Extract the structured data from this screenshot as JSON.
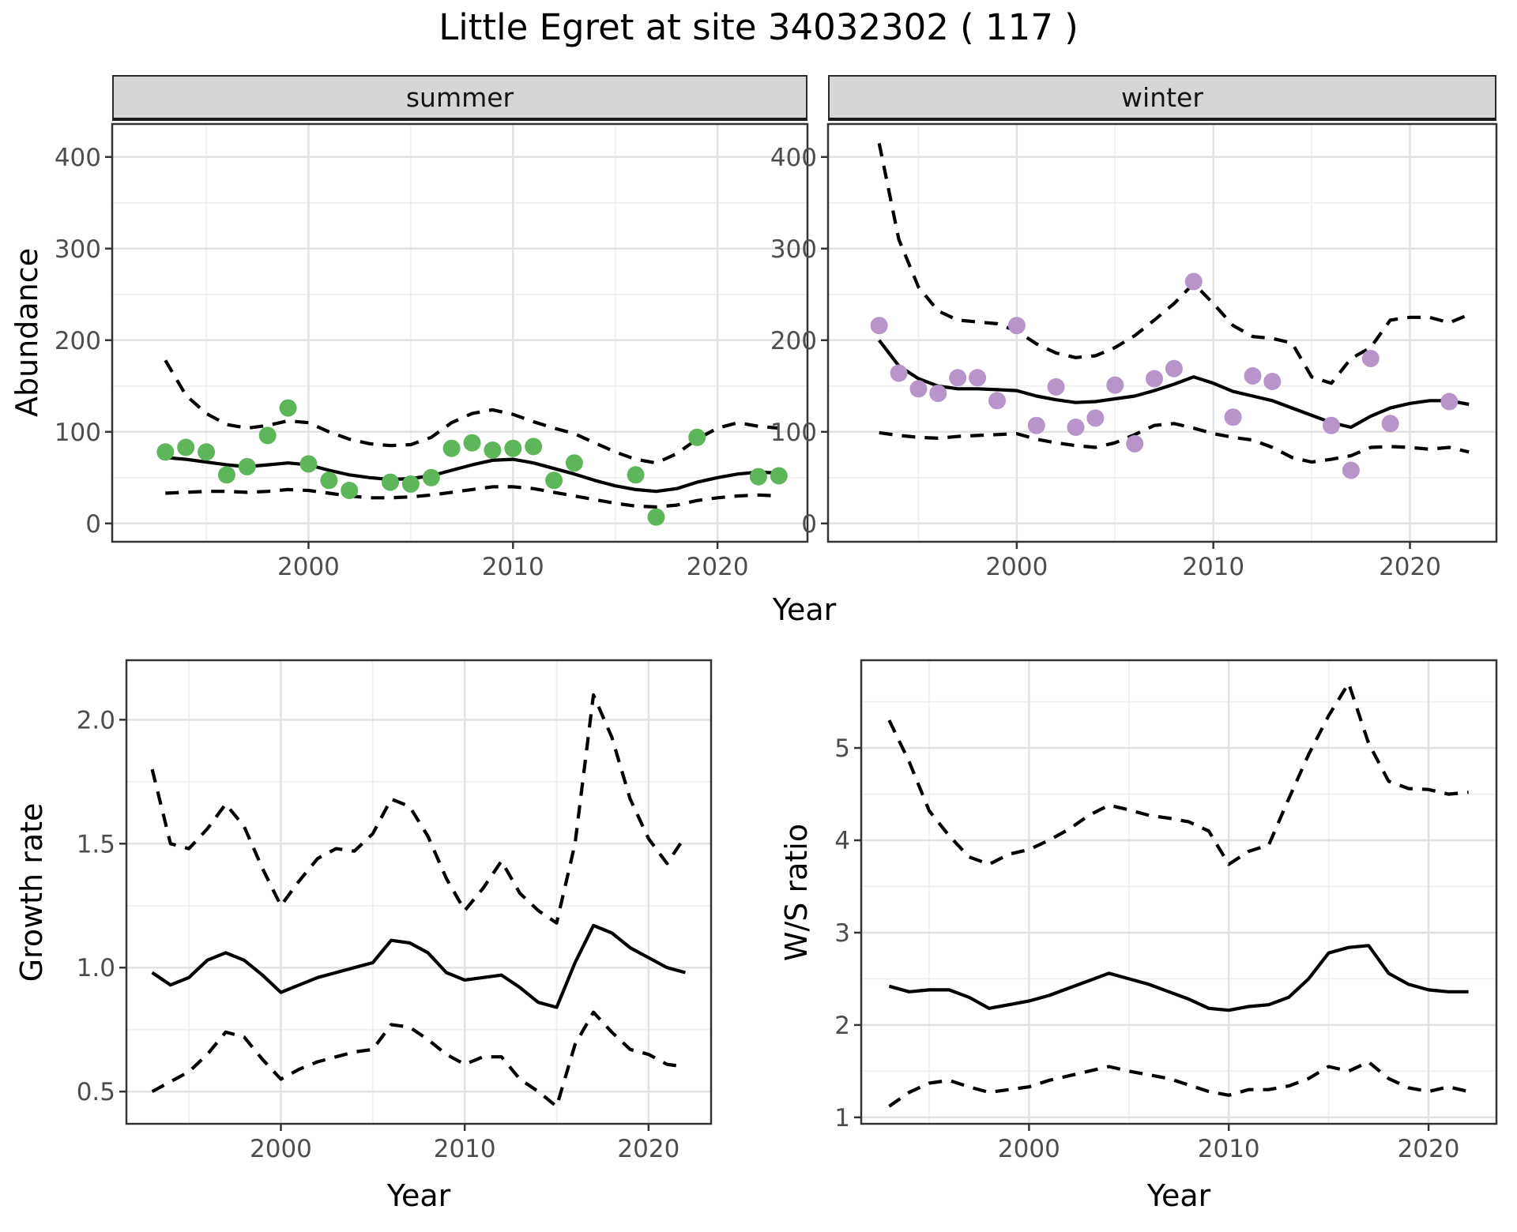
{
  "title": "Little Egret at site 34032302 ( 117 )",
  "colors": {
    "summer_point": "#5DB75A",
    "winter_point": "#B794C9",
    "line": "#000000",
    "strip_bg": "#D6D6D6",
    "panel_border": "#333333",
    "grid_major": "#E2E2E2",
    "grid_minor": "#EFEFEF",
    "tick_mark": "#333333",
    "tick_label": "#4D4D4D"
  },
  "shared_labels": {
    "top_ylabel": "Abundance",
    "top_xlabel": "Year"
  },
  "chart_data": [
    {
      "id": "abundance_summer",
      "type": "line+scatter",
      "facet_label": "summer",
      "xlabel": "Year",
      "ylabel": "Abundance",
      "xlim": [
        1990.4,
        2024.4
      ],
      "ylim": [
        -20,
        436
      ],
      "x_ticks": {
        "values": [
          2000,
          2010,
          2020
        ],
        "labels": [
          "2000",
          "2010",
          "2020"
        ]
      },
      "x_minor": [
        1995,
        2005,
        2015
      ],
      "y_ticks": {
        "values": [
          0,
          100,
          200,
          300,
          400
        ],
        "labels": [
          "0",
          "100",
          "200",
          "300",
          "400"
        ]
      },
      "y_minor": [
        50,
        150,
        250,
        350
      ],
      "years": [
        1993,
        1994,
        1995,
        1996,
        1997,
        1998,
        1999,
        2000,
        2001,
        2002,
        2003,
        2004,
        2005,
        2006,
        2007,
        2008,
        2009,
        2010,
        2011,
        2012,
        2013,
        2014,
        2015,
        2016,
        2017,
        2018,
        2019,
        2020,
        2021,
        2022,
        2023
      ],
      "series": [
        {
          "name": "fit",
          "style": "solid",
          "values": [
            72,
            70,
            67,
            64,
            62,
            64,
            66,
            64,
            58,
            53,
            50,
            48,
            49,
            52,
            58,
            64,
            69,
            70,
            66,
            60,
            54,
            47,
            41,
            37,
            35,
            38,
            45,
            50,
            54,
            56,
            55
          ]
        },
        {
          "name": "upper_ci",
          "style": "dashed",
          "values": [
            178,
            140,
            120,
            108,
            104,
            107,
            112,
            110,
            100,
            92,
            87,
            85,
            86,
            94,
            110,
            120,
            124,
            119,
            111,
            104,
            98,
            88,
            78,
            70,
            66,
            76,
            92,
            104,
            110,
            106,
            104
          ]
        },
        {
          "name": "lower_ci",
          "style": "dashed",
          "values": [
            33,
            34,
            35,
            35,
            34,
            35,
            37,
            36,
            33,
            30,
            28,
            28,
            29,
            31,
            34,
            37,
            40,
            40,
            38,
            34,
            30,
            26,
            22,
            19,
            18,
            20,
            25,
            28,
            30,
            31,
            30
          ]
        }
      ],
      "points": {
        "name": "observed_counts",
        "color": "#5DB75A",
        "years": [
          1993,
          1994,
          1995,
          1996,
          1997,
          1998,
          1999,
          2000,
          2001,
          2002,
          2004,
          2005,
          2006,
          2007,
          2008,
          2009,
          2010,
          2011,
          2012,
          2013,
          2016,
          2017,
          2019,
          2022,
          2023
        ],
        "values": [
          78,
          83,
          78,
          53,
          62,
          96,
          126,
          65,
          47,
          36,
          45,
          43,
          50,
          82,
          88,
          80,
          82,
          84,
          47,
          66,
          53,
          7,
          94,
          51,
          52
        ]
      }
    },
    {
      "id": "abundance_winter",
      "type": "line+scatter",
      "facet_label": "winter",
      "xlabel": "Year",
      "ylabel": "Abundance",
      "xlim": [
        1990.4,
        2024.4
      ],
      "ylim": [
        -20,
        436
      ],
      "x_ticks": {
        "values": [
          2000,
          2010,
          2020
        ],
        "labels": [
          "2000",
          "2010",
          "2020"
        ]
      },
      "x_minor": [
        1995,
        2005,
        2015
      ],
      "y_ticks": {
        "values": [
          0,
          100,
          200,
          300,
          400
        ],
        "labels": [
          "0",
          "100",
          "200",
          "300",
          "400"
        ]
      },
      "y_minor": [
        50,
        150,
        250,
        350
      ],
      "years": [
        1993,
        1994,
        1995,
        1996,
        1997,
        1998,
        1999,
        2000,
        2001,
        2002,
        2003,
        2004,
        2005,
        2006,
        2007,
        2008,
        2009,
        2010,
        2011,
        2012,
        2013,
        2014,
        2015,
        2016,
        2017,
        2018,
        2019,
        2020,
        2021,
        2022,
        2023
      ],
      "series": [
        {
          "name": "fit",
          "style": "solid",
          "values": [
            200,
            172,
            158,
            150,
            147,
            147,
            146,
            145,
            139,
            135,
            132,
            133,
            136,
            139,
            145,
            152,
            160,
            153,
            144,
            139,
            134,
            126,
            118,
            110,
            105,
            117,
            126,
            131,
            134,
            134,
            130
          ]
        },
        {
          "name": "upper_ci",
          "style": "dashed",
          "values": [
            415,
            310,
            258,
            232,
            222,
            220,
            218,
            210,
            196,
            186,
            181,
            183,
            192,
            205,
            222,
            240,
            262,
            240,
            216,
            204,
            202,
            197,
            160,
            153,
            180,
            192,
            222,
            225,
            225,
            219,
            228
          ]
        },
        {
          "name": "lower_ci",
          "style": "dashed",
          "values": [
            99,
            96,
            94,
            93,
            95,
            96,
            97,
            98,
            92,
            88,
            85,
            83,
            88,
            97,
            107,
            109,
            104,
            98,
            94,
            91,
            83,
            72,
            67,
            70,
            74,
            83,
            84,
            83,
            81,
            83,
            78
          ]
        }
      ],
      "points": {
        "name": "observed_counts",
        "color": "#B794C9",
        "years": [
          1993,
          1994,
          1995,
          1996,
          1997,
          1998,
          1999,
          2000,
          2001,
          2002,
          2003,
          2004,
          2005,
          2006,
          2007,
          2008,
          2009,
          2011,
          2012,
          2013,
          2016,
          2017,
          2018,
          2019,
          2022
        ],
        "values": [
          216,
          164,
          147,
          142,
          159,
          159,
          134,
          216,
          107,
          149,
          105,
          115,
          151,
          87,
          158,
          169,
          264,
          116,
          161,
          155,
          107,
          58,
          180,
          109,
          133
        ]
      }
    },
    {
      "id": "growth_rate",
      "type": "line",
      "facet_label": "",
      "xlabel": "Year",
      "ylabel": "Growth rate",
      "xlim": [
        1991.6,
        2023.4
      ],
      "ylim": [
        0.37,
        2.24
      ],
      "x_ticks": {
        "values": [
          2000,
          2010,
          2020
        ],
        "labels": [
          "2000",
          "2010",
          "2020"
        ]
      },
      "x_minor": [
        1995,
        2005,
        2015
      ],
      "y_ticks": {
        "values": [
          0.5,
          1.0,
          1.5,
          2.0
        ],
        "labels": [
          "0.5",
          "1.0",
          "1.5",
          "2.0"
        ]
      },
      "y_minor": [
        0.75,
        1.25,
        1.75
      ],
      "years": [
        1993,
        1994,
        1995,
        1996,
        1997,
        1998,
        1999,
        2000,
        2001,
        2002,
        2003,
        2004,
        2005,
        2006,
        2007,
        2008,
        2009,
        2010,
        2011,
        2012,
        2013,
        2014,
        2015,
        2016,
        2017,
        2018,
        2019,
        2020,
        2021,
        2022
      ],
      "series": [
        {
          "name": "fit",
          "style": "solid",
          "values": [
            0.98,
            0.93,
            0.96,
            1.03,
            1.06,
            1.03,
            0.97,
            0.9,
            0.93,
            0.96,
            0.98,
            1.0,
            1.02,
            1.11,
            1.1,
            1.06,
            0.98,
            0.95,
            0.96,
            0.97,
            0.92,
            0.86,
            0.84,
            1.02,
            1.17,
            1.14,
            1.08,
            1.04,
            1.0,
            0.98
          ]
        },
        {
          "name": "upper_ci",
          "style": "dashed",
          "values": [
            1.8,
            1.5,
            1.48,
            1.56,
            1.66,
            1.57,
            1.4,
            1.25,
            1.35,
            1.44,
            1.48,
            1.47,
            1.54,
            1.68,
            1.65,
            1.53,
            1.36,
            1.23,
            1.32,
            1.43,
            1.3,
            1.23,
            1.18,
            1.5,
            2.1,
            1.93,
            1.68,
            1.52,
            1.42,
            1.53
          ]
        },
        {
          "name": "lower_ci",
          "style": "dashed",
          "values": [
            0.5,
            0.54,
            0.58,
            0.65,
            0.74,
            0.72,
            0.63,
            0.55,
            0.59,
            0.62,
            0.64,
            0.66,
            0.67,
            0.77,
            0.76,
            0.71,
            0.65,
            0.61,
            0.64,
            0.64,
            0.55,
            0.5,
            0.44,
            0.69,
            0.82,
            0.74,
            0.67,
            0.65,
            0.61,
            0.6
          ]
        }
      ],
      "points": null
    },
    {
      "id": "ws_ratio",
      "type": "line",
      "facet_label": "",
      "xlabel": "Year",
      "ylabel": "W/S ratio",
      "xlim": [
        1991.6,
        2023.4
      ],
      "ylim": [
        0.93,
        5.95
      ],
      "x_ticks": {
        "values": [
          2000,
          2010,
          2020
        ],
        "labels": [
          "2000",
          "2010",
          "2020"
        ]
      },
      "x_minor": [
        1995,
        2005,
        2015
      ],
      "y_ticks": {
        "values": [
          1,
          2,
          3,
          4,
          5
        ],
        "labels": [
          "1",
          "2",
          "3",
          "4",
          "5"
        ]
      },
      "y_minor": [
        1.5,
        2.5,
        3.5,
        4.5,
        5.5
      ],
      "years": [
        1993,
        1994,
        1995,
        1996,
        1997,
        1998,
        1999,
        2000,
        2001,
        2002,
        2003,
        2004,
        2005,
        2006,
        2007,
        2008,
        2009,
        2010,
        2011,
        2012,
        2013,
        2014,
        2015,
        2016,
        2017,
        2018,
        2019,
        2020,
        2021,
        2022
      ],
      "series": [
        {
          "name": "fit",
          "style": "solid",
          "values": [
            2.42,
            2.36,
            2.38,
            2.38,
            2.3,
            2.18,
            2.22,
            2.26,
            2.32,
            2.4,
            2.48,
            2.56,
            2.5,
            2.44,
            2.36,
            2.28,
            2.18,
            2.16,
            2.2,
            2.22,
            2.3,
            2.5,
            2.78,
            2.84,
            2.86,
            2.56,
            2.44,
            2.38,
            2.36,
            2.36
          ]
        },
        {
          "name": "upper_ci",
          "style": "dashed",
          "values": [
            5.3,
            4.85,
            4.32,
            4.05,
            3.82,
            3.74,
            3.85,
            3.9,
            4.0,
            4.12,
            4.27,
            4.38,
            4.33,
            4.27,
            4.24,
            4.2,
            4.1,
            3.74,
            3.88,
            3.95,
            4.45,
            4.93,
            5.35,
            5.7,
            5.05,
            4.64,
            4.56,
            4.55,
            4.5,
            4.52
          ]
        },
        {
          "name": "lower_ci",
          "style": "dashed",
          "values": [
            1.12,
            1.27,
            1.37,
            1.4,
            1.33,
            1.27,
            1.3,
            1.33,
            1.4,
            1.45,
            1.5,
            1.55,
            1.5,
            1.46,
            1.42,
            1.35,
            1.28,
            1.24,
            1.3,
            1.3,
            1.34,
            1.42,
            1.55,
            1.5,
            1.6,
            1.42,
            1.32,
            1.28,
            1.33,
            1.28
          ]
        }
      ],
      "points": null
    }
  ]
}
